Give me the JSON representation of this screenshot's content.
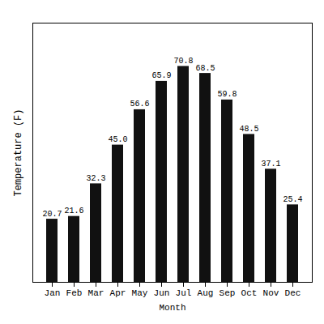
{
  "chart_data": {
    "type": "bar",
    "categories": [
      "Jan",
      "Feb",
      "Mar",
      "Apr",
      "May",
      "Jun",
      "Jul",
      "Aug",
      "Sep",
      "Oct",
      "Nov",
      "Dec"
    ],
    "values": [
      20.7,
      21.6,
      32.3,
      45.0,
      56.6,
      65.9,
      70.8,
      68.5,
      59.8,
      48.5,
      37.1,
      25.4
    ],
    "value_labels": [
      "20.7",
      "21.6",
      "32.3",
      "45.0",
      "56.6",
      "65.9",
      "70.8",
      "68.5",
      "59.8",
      "48.5",
      "37.1",
      "25.4"
    ],
    "color": "#111111",
    "xlabel": "Month",
    "ylabel": "Temperature (F)",
    "ylim": [
      0,
      85
    ],
    "yticks": [],
    "tick_labels": "x",
    "data_labels": true,
    "grid": false
  }
}
